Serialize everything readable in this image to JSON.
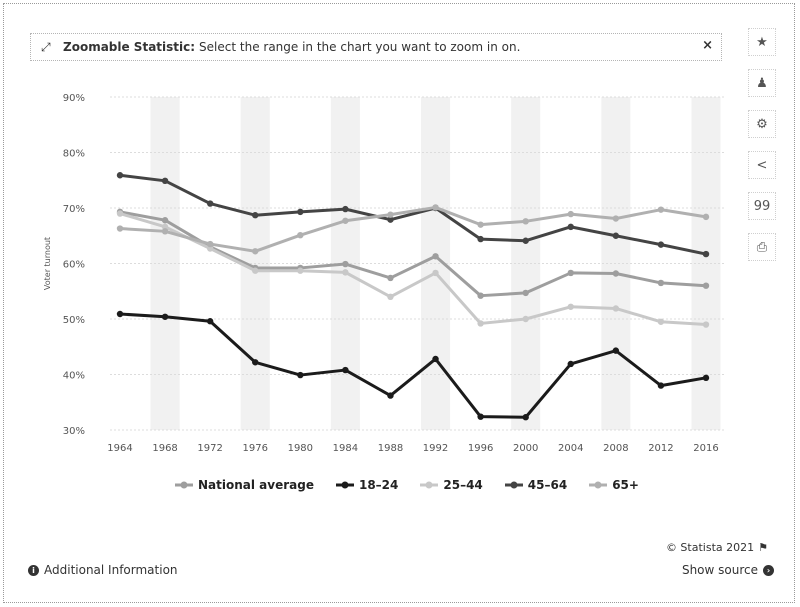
{
  "banner": {
    "title": "Zoomable Statistic:",
    "text": "Select the range in the chart you want to zoom in on.",
    "close": "×"
  },
  "toolbar": {
    "icons": [
      "star-icon",
      "bell-icon",
      "gear-icon",
      "share-icon",
      "quote-icon",
      "print-icon"
    ],
    "glyphs": [
      "★",
      "♟",
      "⚙",
      "<",
      "99",
      "⎙"
    ]
  },
  "chart_data": {
    "type": "line",
    "xlabel": "",
    "ylabel": "Voter turnout",
    "ylim": [
      30,
      90
    ],
    "yticks": [
      "30%",
      "40%",
      "50%",
      "60%",
      "70%",
      "80%",
      "90%"
    ],
    "categories": [
      "1964",
      "1968",
      "1972",
      "1976",
      "1980",
      "1984",
      "1988",
      "1992",
      "1996",
      "2000",
      "2004",
      "2008",
      "2012",
      "2016"
    ],
    "grid": "alternating vertical bands",
    "legend_position": "bottom",
    "series": [
      {
        "name": "National average",
        "color": "#9e9e9e",
        "values": [
          69.3,
          67.8,
          63.0,
          59.2,
          59.2,
          59.9,
          57.4,
          61.3,
          54.2,
          54.7,
          58.3,
          58.2,
          56.5,
          56.0
        ]
      },
      {
        "name": "18–24",
        "color": "#1b1b1b",
        "values": [
          50.9,
          50.4,
          49.6,
          42.2,
          39.9,
          40.8,
          36.2,
          42.8,
          32.4,
          32.3,
          41.9,
          44.3,
          38.0,
          39.4
        ]
      },
      {
        "name": "25–44",
        "color": "#c8c8c8",
        "values": [
          69.0,
          66.6,
          62.7,
          58.7,
          58.7,
          58.4,
          54.0,
          58.3,
          49.2,
          50.0,
          52.2,
          51.9,
          49.5,
          49.0
        ]
      },
      {
        "name": "45–64",
        "color": "#444444",
        "values": [
          75.9,
          74.9,
          70.8,
          68.7,
          69.3,
          69.8,
          67.9,
          70.0,
          64.4,
          64.1,
          66.6,
          65.0,
          63.4,
          61.7
        ]
      },
      {
        "name": "65+",
        "color": "#b0b0b0",
        "values": [
          66.3,
          65.8,
          63.5,
          62.2,
          65.1,
          67.7,
          68.8,
          70.1,
          67.0,
          67.6,
          68.9,
          68.1,
          69.7,
          68.4
        ]
      }
    ]
  },
  "credits": "© Statista 2021",
  "footer": {
    "additional": "Additional Information",
    "source": "Show source"
  }
}
